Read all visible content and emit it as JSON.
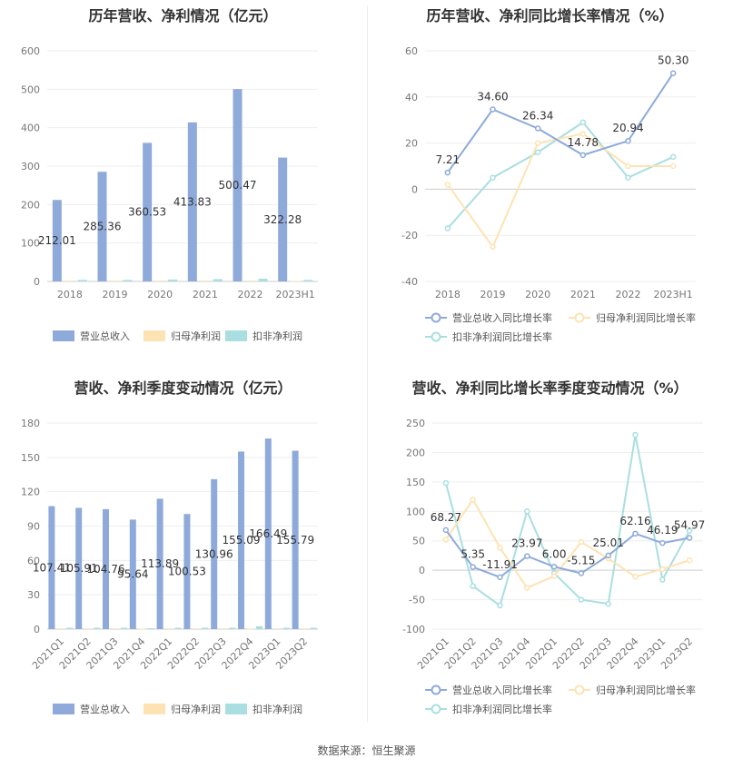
{
  "source": "数据来源：恒生聚源",
  "chart_data": [
    {
      "type": "bar",
      "title": "历年营收、净利情况（亿元）",
      "categories": [
        "2018",
        "2019",
        "2020",
        "2021",
        "2022",
        "2023H1"
      ],
      "ylim": [
        0,
        600
      ],
      "yticks": [
        0,
        100,
        200,
        300,
        400,
        500,
        600
      ],
      "grid": true,
      "legend": "bottom",
      "series": [
        {
          "name": "营业总收入",
          "color": "#8eaadb",
          "values": [
            212.01,
            285.36,
            360.53,
            413.83,
            500.47,
            322.28
          ],
          "labels": [
            "212.01",
            "285.36",
            "360.53",
            "413.83",
            "500.47",
            "322.28"
          ]
        },
        {
          "name": "归母净利润",
          "color": "#fde3b3",
          "values": [
            2,
            2,
            2,
            2,
            2,
            1.5
          ]
        },
        {
          "name": "扣非净利润",
          "color": "#a9dfe0",
          "values": [
            4,
            4,
            5,
            6,
            7,
            4
          ]
        }
      ]
    },
    {
      "type": "line",
      "title": "历年营收、净利同比增长率情况（%）",
      "categories": [
        "2018",
        "2019",
        "2020",
        "2021",
        "2022",
        "2023H1"
      ],
      "ylim": [
        -40,
        60
      ],
      "yticks": [
        -40,
        -20,
        0,
        20,
        40,
        60
      ],
      "grid": true,
      "legend": "bottom",
      "series": [
        {
          "name": "营业总收入同比增长率",
          "color": "#8eaadb",
          "values": [
            7.21,
            34.6,
            26.34,
            14.78,
            20.94,
            50.3
          ],
          "labels": [
            "7.21",
            "34.60",
            "26.34",
            "14.78",
            "20.94",
            "50.30"
          ]
        },
        {
          "name": "归母净利润同比增长率",
          "color": "#fde3b3",
          "values": [
            2,
            -25,
            20,
            24,
            10,
            10
          ]
        },
        {
          "name": "扣非净利润同比增长率",
          "color": "#a9dfe0",
          "values": [
            -17,
            5,
            16,
            29,
            5,
            14
          ]
        }
      ]
    },
    {
      "type": "bar",
      "title": "营收、净利季度变动情况（亿元）",
      "categories": [
        "2021Q1",
        "2021Q2",
        "2021Q3",
        "2021Q4",
        "2022Q1",
        "2022Q2",
        "2022Q3",
        "2022Q4",
        "2023Q1",
        "2023Q2"
      ],
      "ylim": [
        0,
        180
      ],
      "yticks": [
        0,
        30,
        60,
        90,
        120,
        150,
        180
      ],
      "grid": true,
      "legend": "bottom",
      "series": [
        {
          "name": "营业总收入",
          "color": "#8eaadb",
          "values": [
            107.41,
            105.91,
            104.76,
            95.64,
            113.89,
            100.53,
            130.96,
            155.09,
            166.49,
            155.79
          ],
          "labels": [
            "107.41",
            "105.91",
            "104.76",
            "95.64",
            "113.89",
            "100.53",
            "130.96",
            "155.09",
            "166.49",
            "155.79"
          ]
        },
        {
          "name": "归母净利润",
          "color": "#fde3b3",
          "values": [
            0.6,
            0.6,
            0.6,
            0.4,
            0.6,
            0.6,
            0.6,
            0.4,
            0.6,
            0.6
          ]
        },
        {
          "name": "扣非净利润",
          "color": "#a9dfe0",
          "values": [
            1.2,
            1.2,
            1.2,
            0.8,
            1.2,
            1.2,
            1.2,
            2.5,
            1.2,
            1.2
          ]
        }
      ]
    },
    {
      "type": "line",
      "title": "营收、净利同比增长率季度变动情况（%）",
      "categories": [
        "2021Q1",
        "2021Q2",
        "2021Q3",
        "2021Q4",
        "2022Q1",
        "2022Q2",
        "2022Q3",
        "2022Q4",
        "2023Q1",
        "2023Q2"
      ],
      "ylim": [
        -100,
        250
      ],
      "yticks": [
        -100,
        -50,
        0,
        50,
        100,
        150,
        200,
        250
      ],
      "grid": true,
      "legend": "bottom",
      "series": [
        {
          "name": "营业总收入同比增长率",
          "color": "#8eaadb",
          "values": [
            68.27,
            5.35,
            -11.91,
            23.97,
            6,
            -5.15,
            25.01,
            62.16,
            46.19,
            54.97
          ],
          "labels": [
            "68.27",
            "5.35",
            "-11.91",
            "23.97",
            "6.00",
            "-5.15",
            "25.01",
            "62.16",
            "46.19",
            "54.97"
          ]
        },
        {
          "name": "归母净利润同比增长率",
          "color": "#fde3b3",
          "values": [
            52,
            120,
            38,
            -30,
            -10,
            48,
            20,
            -11,
            2,
            17
          ]
        },
        {
          "name": "扣非净利润同比增长率",
          "color": "#a9dfe0",
          "values": [
            148,
            -27,
            -60,
            100,
            -5,
            -50,
            -57,
            230,
            -16,
            67
          ]
        }
      ]
    }
  ]
}
